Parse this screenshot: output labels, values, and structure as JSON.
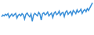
{
  "chart_data": {
    "type": "line",
    "values": [
      52,
      58,
      55,
      60,
      57,
      62,
      50,
      56,
      61,
      54,
      59,
      63,
      48,
      57,
      60,
      55,
      62,
      58,
      45,
      60,
      64,
      57,
      52,
      61,
      38,
      58,
      63,
      59,
      55,
      66,
      60,
      42,
      62,
      65,
      58,
      61,
      67,
      55,
      60,
      64,
      50,
      63,
      68,
      59,
      62,
      70,
      57,
      64,
      66,
      53,
      67,
      71,
      60,
      65,
      69,
      58,
      72,
      68,
      62,
      74,
      66,
      70,
      76,
      63,
      71,
      75,
      68,
      78,
      72,
      80,
      88,
      96
    ],
    "color": "#3a8fd8",
    "ylim": [
      0,
      100
    ],
    "grid": false,
    "tick_labels": false
  }
}
